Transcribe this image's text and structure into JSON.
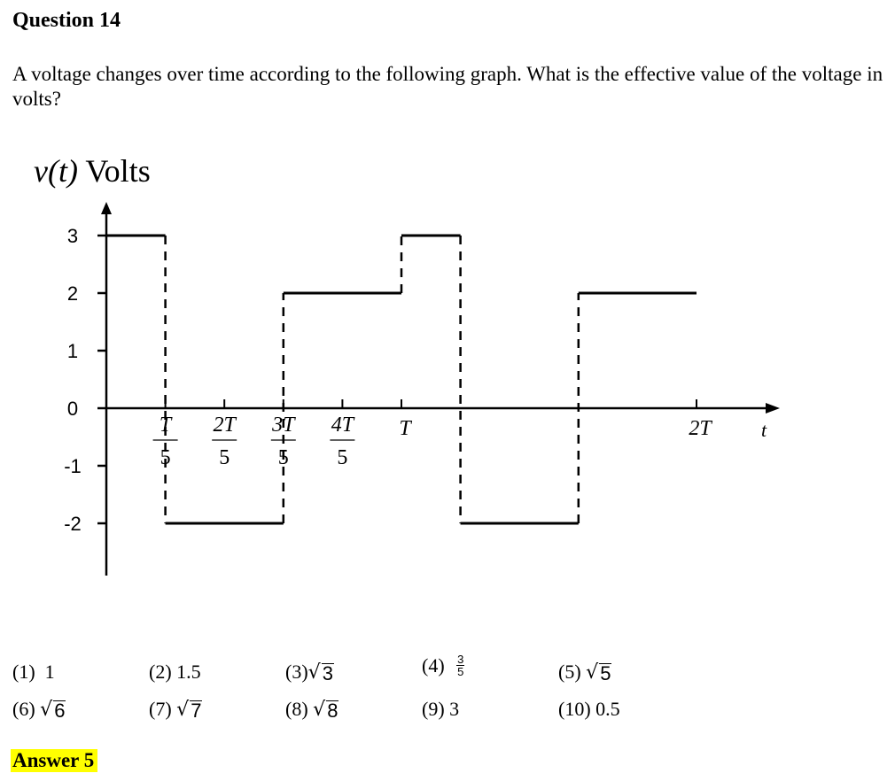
{
  "question_number": "Question 14",
  "question_text": "A voltage changes over time according to the following graph. What is the effective value of the voltage in volts?",
  "chart_data": {
    "type": "line",
    "ylabel_italic": "v(t)",
    "ylabel_unit": "Volts",
    "xlabel": "t",
    "y_ticks": [
      "3",
      "2",
      "1",
      "0",
      "-1",
      "-2"
    ],
    "x_tick_labels": [
      {
        "t": 0.2,
        "num": "T",
        "den": "5"
      },
      {
        "t": 0.4,
        "num": "2T",
        "den": "5"
      },
      {
        "t": 0.6,
        "num": "3T",
        "den": "5"
      },
      {
        "t": 0.8,
        "num": "4T",
        "den": "5"
      },
      {
        "t": 1.0,
        "label": "T"
      },
      {
        "t": 2.0,
        "label": "2T"
      }
    ],
    "ylim": [
      -2.8,
      3.4
    ],
    "segments": [
      {
        "t_start": 0.0,
        "t_end": 0.2,
        "v": 3
      },
      {
        "t_start": 0.2,
        "t_end": 0.6,
        "v": -2
      },
      {
        "t_start": 0.6,
        "t_end": 1.0,
        "v": 2
      },
      {
        "t_start": 1.0,
        "t_end": 1.2,
        "v": 3
      },
      {
        "t_start": 1.2,
        "t_end": 1.6,
        "v": -2
      },
      {
        "t_start": 1.6,
        "t_end": 2.0,
        "v": 2
      }
    ]
  },
  "options": [
    {
      "id": "1",
      "prefix": "(1)  ",
      "text": "1"
    },
    {
      "id": "2",
      "prefix": "(2) ",
      "text": "1.5"
    },
    {
      "id": "3",
      "prefix": "(3)",
      "sqrt": "3"
    },
    {
      "id": "4",
      "prefix": "(4) ",
      "frac_num": "3",
      "frac_den": "5"
    },
    {
      "id": "5",
      "prefix": "(5) ",
      "sqrt": "5"
    },
    {
      "id": "6",
      "prefix": "(6) ",
      "sqrt": "6"
    },
    {
      "id": "7",
      "prefix": "(7) ",
      "sqrt": "7"
    },
    {
      "id": "8",
      "prefix": "(8) ",
      "sqrt": "8"
    },
    {
      "id": "9",
      "prefix": "(9) ",
      "text": "3"
    },
    {
      "id": "10",
      "prefix": "(10) ",
      "text": "0.5"
    }
  ],
  "answer": "Answer 5"
}
